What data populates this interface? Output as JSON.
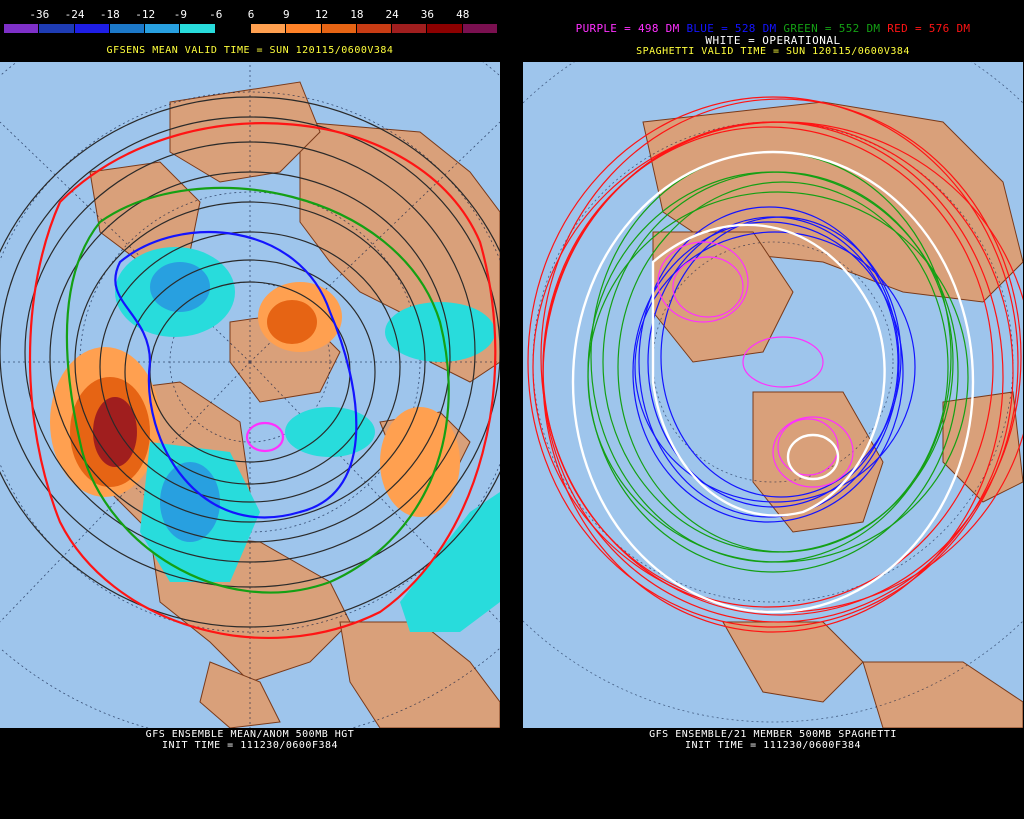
{
  "left": {
    "scale_labels": [
      "-36",
      "-24",
      "-18",
      "-12",
      "-9",
      "-6",
      "6",
      "9",
      "12",
      "18",
      "24",
      "36",
      "48"
    ],
    "scale_colors": [
      "#7e30c8",
      "#1e3cb4",
      "#1e1ee6",
      "#1c78c8",
      "#28a0e0",
      "#28dcdc",
      "#000000",
      "#ffa050",
      "#ff8228",
      "#e66414",
      "#c83c14",
      "#a01e1e",
      "#8c0000",
      "#7a1050"
    ],
    "valid_time": "GFSENS MEAN VALID TIME = SUN 120115/0600V384",
    "title_line1": "GFS ENSEMBLE MEAN/ANOM 500MB HGT",
    "title_line2": "INIT TIME = 111230/0600F384"
  },
  "right": {
    "legend_purple": "PURPLE = 498 DM",
    "legend_blue": "BLUE = 528 DM",
    "legend_green": "GREEN = 552 DM",
    "legend_red": "RED = 576 DM",
    "legend_white": "WHITE = OPERATIONAL",
    "valid_time": "SPAGHETTI VALID TIME = SUN 120115/0600V384",
    "title_line1": "GFS ENSEMBLE/21 MEMBER 500MB SPAGHETTI",
    "title_line2": "INIT TIME = 111230/0600F384"
  },
  "colors": {
    "ocean": "#9ec5ec",
    "land": "#d9a07a",
    "purple": "#ff30ff",
    "blue": "#1414ff",
    "green": "#14a014",
    "red": "#ff1414",
    "white": "#ffffff",
    "caption_yellow": "#ffff3c"
  }
}
